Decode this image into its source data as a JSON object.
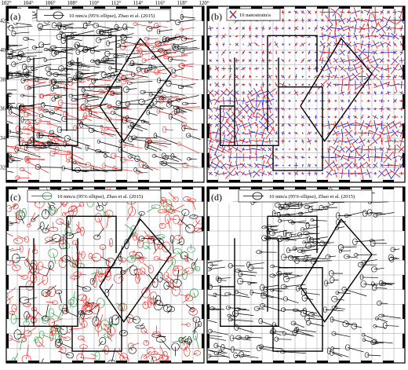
{
  "figure": {
    "top_lon_labels": [
      "102°",
      "104°",
      "106°",
      "108°",
      "110°",
      "112°",
      "114°",
      "116°",
      "118°",
      "120°"
    ],
    "left_lat_labels": [
      "42°",
      "40°",
      "38°",
      "36°",
      "34°",
      "32°"
    ]
  },
  "panels": [
    {
      "id": "a",
      "label": "(a)",
      "legend": "10 mm/a (95% ellipse), Zhao et al. (2015)",
      "content": "gps-velocity-vectors",
      "vector_colors": [
        "#000000",
        "#e8211d"
      ]
    },
    {
      "id": "b",
      "label": "(b)",
      "legend": "10 nanostrain/a",
      "content": "strain-rate-crosses",
      "vector_colors": [
        "#e8211d",
        "#2b2bd8"
      ]
    },
    {
      "id": "c",
      "label": "(c)",
      "legend": "10 mm/a (95% ellipse), Zhao et al. (2015)",
      "content": "residual-velocity-ellipses",
      "vector_colors": [
        "#000000",
        "#e8211d",
        "#1e9b3a"
      ]
    },
    {
      "id": "d",
      "label": "(d)",
      "legend": "10 mm/a (95% ellipse), Zhao et al. (2015)",
      "content": "block-velocity-vectors",
      "vector_colors": [
        "#000000"
      ]
    }
  ]
}
